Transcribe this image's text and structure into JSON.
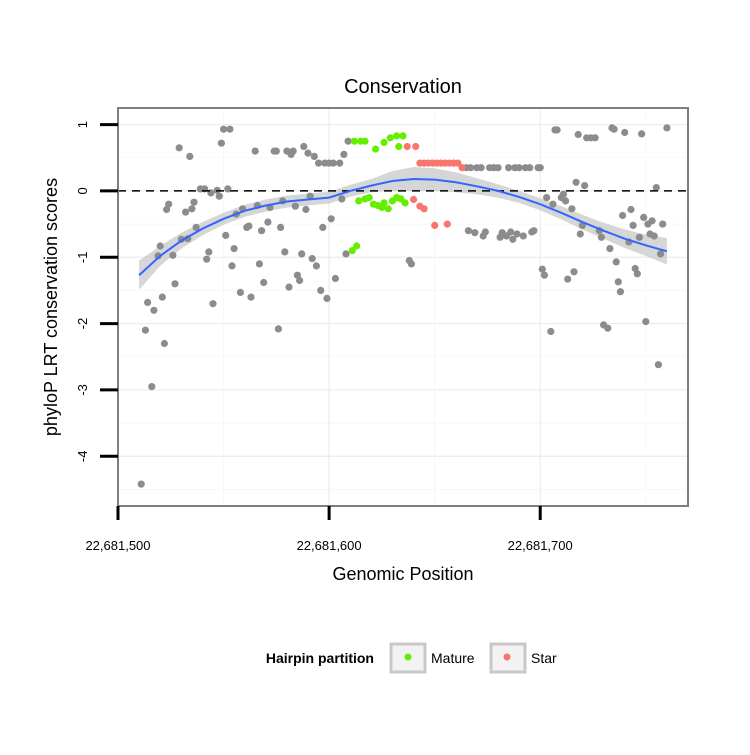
{
  "chart_data": {
    "type": "scatter",
    "title": "Conservation",
    "xlabel": "Genomic Position",
    "ylabel": "phyloP LRT conservation scores",
    "xlim": [
      22681500,
      22681770
    ],
    "ylim": [
      -4.75,
      1.25
    ],
    "x_ticks": [
      {
        "value": 22681500,
        "label": "22,681,500"
      },
      {
        "value": 22681600,
        "label": "22,681,600"
      },
      {
        "value": 22681700,
        "label": "22,681,700"
      }
    ],
    "y_ticks": [
      {
        "value": 1,
        "label": "1"
      },
      {
        "value": 0,
        "label": "0"
      },
      {
        "value": -1,
        "label": "-1"
      },
      {
        "value": -2,
        "label": "-2"
      },
      {
        "value": -3,
        "label": "-3"
      },
      {
        "value": -4,
        "label": "-4"
      }
    ],
    "grid": true,
    "reference_line": {
      "y": 0,
      "style": "dashed",
      "color": "#000000"
    },
    "legend": {
      "title": "Hairpin partition",
      "position": "bottom",
      "entries": [
        {
          "name": "Mature",
          "color": "#66ee00"
        },
        {
          "name": "Star",
          "color": "#f8766d"
        }
      ]
    },
    "colors": {
      "other": "#8c8c8c",
      "mature": "#66ee00",
      "star": "#f8766d",
      "smooth": "#3366ff",
      "band": "#cccccc"
    },
    "smooth": {
      "x": [
        22681510,
        22681520,
        22681530,
        22681540,
        22681550,
        22681560,
        22681570,
        22681580,
        22681590,
        22681600,
        22681610,
        22681620,
        22681630,
        22681640,
        22681650,
        22681660,
        22681670,
        22681680,
        22681690,
        22681700,
        22681710,
        22681720,
        22681730,
        22681740,
        22681750,
        22681760
      ],
      "y": [
        -1.27,
        -0.98,
        -0.75,
        -0.57,
        -0.42,
        -0.3,
        -0.22,
        -0.16,
        -0.13,
        -0.1,
        0.0,
        0.08,
        0.15,
        0.18,
        0.17,
        0.13,
        0.07,
        0.0,
        -0.09,
        -0.2,
        -0.33,
        -0.47,
        -0.6,
        -0.72,
        -0.82,
        -0.91
      ],
      "band": [
        0.22,
        0.15,
        0.12,
        0.1,
        0.09,
        0.09,
        0.09,
        0.09,
        0.09,
        0.09,
        0.09,
        0.1,
        0.15,
        0.18,
        0.17,
        0.15,
        0.12,
        0.1,
        0.09,
        0.09,
        0.1,
        0.11,
        0.12,
        0.14,
        0.16,
        0.2
      ]
    },
    "series": [
      {
        "name": "Mature",
        "color": "#66ee00",
        "points": [
          [
            22681612,
            0.75
          ],
          [
            22681615,
            0.75
          ],
          [
            22681617,
            0.75
          ],
          [
            22681622,
            0.63
          ],
          [
            22681626,
            0.73
          ],
          [
            22681629,
            0.8
          ],
          [
            22681632,
            0.83
          ],
          [
            22681635,
            0.83
          ],
          [
            22681633,
            0.67
          ],
          [
            22681613,
            -0.83
          ],
          [
            22681611,
            -0.9
          ],
          [
            22681614,
            -0.15
          ],
          [
            22681617,
            -0.12
          ],
          [
            22681619,
            -0.1
          ],
          [
            22681621,
            -0.2
          ],
          [
            22681623,
            -0.22
          ],
          [
            22681625,
            -0.25
          ],
          [
            22681626,
            -0.18
          ],
          [
            22681628,
            -0.27
          ],
          [
            22681630,
            -0.15
          ],
          [
            22681632,
            -0.1
          ],
          [
            22681634,
            -0.12
          ],
          [
            22681636,
            -0.18
          ]
        ]
      },
      {
        "name": "Star",
        "color": "#f8766d",
        "points": [
          [
            22681637,
            0.67
          ],
          [
            22681641,
            0.67
          ],
          [
            22681643,
            0.42
          ],
          [
            22681645,
            0.42
          ],
          [
            22681647,
            0.42
          ],
          [
            22681649,
            0.42
          ],
          [
            22681651,
            0.42
          ],
          [
            22681653,
            0.42
          ],
          [
            22681655,
            0.42
          ],
          [
            22681657,
            0.42
          ],
          [
            22681659,
            0.42
          ],
          [
            22681661,
            0.42
          ],
          [
            22681663,
            0.35
          ],
          [
            22681640,
            -0.13
          ],
          [
            22681643,
            -0.23
          ],
          [
            22681645,
            -0.27
          ],
          [
            22681650,
            -0.52
          ],
          [
            22681656,
            -0.5
          ]
        ]
      },
      {
        "points": [
          [
            22681511,
            -4.42
          ],
          [
            22681513,
            -2.1
          ],
          [
            22681514,
            -1.68
          ],
          [
            22681516,
            -2.95
          ],
          [
            22681517,
            -1.8
          ],
          [
            22681519,
            -0.98
          ],
          [
            22681520,
            -0.83
          ],
          [
            22681521,
            -1.6
          ],
          [
            22681522,
            -2.3
          ],
          [
            22681523,
            -0.28
          ],
          [
            22681524,
            -0.2
          ],
          [
            22681526,
            -0.97
          ],
          [
            22681527,
            -1.4
          ],
          [
            22681529,
            0.65
          ],
          [
            22681530,
            -0.73
          ],
          [
            22681532,
            -0.32
          ],
          [
            22681533,
            -0.72
          ],
          [
            22681534,
            0.52
          ],
          [
            22681535,
            -0.27
          ],
          [
            22681536,
            -0.17
          ],
          [
            22681537,
            -0.55
          ],
          [
            22681539,
            0.03
          ],
          [
            22681541,
            0.03
          ],
          [
            22681542,
            -1.03
          ],
          [
            22681543,
            -0.92
          ],
          [
            22681544,
            -0.03
          ],
          [
            22681545,
            -1.7
          ],
          [
            22681547,
            0.01
          ],
          [
            22681548,
            -0.08
          ],
          [
            22681549,
            0.72
          ],
          [
            22681550,
            0.93
          ],
          [
            22681551,
            -0.67
          ],
          [
            22681552,
            0.03
          ],
          [
            22681553,
            0.93
          ],
          [
            22681554,
            -1.13
          ],
          [
            22681555,
            -0.87
          ],
          [
            22681556,
            -0.35
          ],
          [
            22681558,
            -1.53
          ],
          [
            22681559,
            -0.27
          ],
          [
            22681561,
            -0.55
          ],
          [
            22681562,
            -0.53
          ],
          [
            22681563,
            -1.6
          ],
          [
            22681565,
            0.6
          ],
          [
            22681566,
            -0.22
          ],
          [
            22681567,
            -1.1
          ],
          [
            22681568,
            -0.6
          ],
          [
            22681569,
            -1.38
          ],
          [
            22681571,
            -0.47
          ],
          [
            22681572,
            -0.25
          ],
          [
            22681574,
            0.6
          ],
          [
            22681575,
            0.6
          ],
          [
            22681576,
            -2.08
          ],
          [
            22681577,
            -0.55
          ],
          [
            22681578,
            -0.15
          ],
          [
            22681579,
            -0.92
          ],
          [
            22681580,
            0.6
          ],
          [
            22681581,
            -1.45
          ],
          [
            22681582,
            0.55
          ],
          [
            22681583,
            0.6
          ],
          [
            22681584,
            -0.23
          ],
          [
            22681585,
            -1.27
          ],
          [
            22681586,
            -1.35
          ],
          [
            22681587,
            -0.95
          ],
          [
            22681588,
            0.67
          ],
          [
            22681589,
            -0.28
          ],
          [
            22681590,
            0.57
          ],
          [
            22681591,
            -0.08
          ],
          [
            22681592,
            -1.02
          ],
          [
            22681593,
            0.52
          ],
          [
            22681594,
            -1.13
          ],
          [
            22681595,
            0.42
          ],
          [
            22681596,
            -1.5
          ],
          [
            22681597,
            -0.55
          ],
          [
            22681598,
            0.42
          ],
          [
            22681599,
            -1.62
          ],
          [
            22681600,
            0.42
          ],
          [
            22681601,
            -0.42
          ],
          [
            22681602,
            0.42
          ],
          [
            22681603,
            -1.32
          ],
          [
            22681605,
            0.42
          ],
          [
            22681606,
            -0.12
          ],
          [
            22681607,
            0.55
          ],
          [
            22681608,
            -0.95
          ],
          [
            22681609,
            0.75
          ],
          [
            22681638,
            -1.05
          ],
          [
            22681639,
            -1.1
          ],
          [
            22681665,
            0.35
          ],
          [
            22681666,
            -0.6
          ],
          [
            22681667,
            0.35
          ],
          [
            22681669,
            -0.63
          ],
          [
            22681670,
            0.35
          ],
          [
            22681672,
            0.35
          ],
          [
            22681673,
            -0.68
          ],
          [
            22681674,
            -0.62
          ],
          [
            22681676,
            0.35
          ],
          [
            22681678,
            0.35
          ],
          [
            22681680,
            0.35
          ],
          [
            22681681,
            -0.7
          ],
          [
            22681682,
            -0.63
          ],
          [
            22681684,
            -0.68
          ],
          [
            22681685,
            0.35
          ],
          [
            22681686,
            -0.62
          ],
          [
            22681687,
            -0.73
          ],
          [
            22681688,
            0.35
          ],
          [
            22681689,
            -0.65
          ],
          [
            22681690,
            0.35
          ],
          [
            22681692,
            -0.68
          ],
          [
            22681693,
            0.35
          ],
          [
            22681695,
            0.35
          ],
          [
            22681696,
            -0.62
          ],
          [
            22681697,
            -0.6
          ],
          [
            22681699,
            0.35
          ],
          [
            22681700,
            0.35
          ],
          [
            22681701,
            -1.18
          ],
          [
            22681702,
            -1.27
          ],
          [
            22681703,
            -0.1
          ],
          [
            22681705,
            -2.12
          ],
          [
            22681706,
            -0.2
          ],
          [
            22681707,
            0.92
          ],
          [
            22681708,
            0.92
          ],
          [
            22681710,
            -0.1
          ],
          [
            22681711,
            -0.05
          ],
          [
            22681712,
            -0.15
          ],
          [
            22681713,
            -1.33
          ],
          [
            22681715,
            -0.27
          ],
          [
            22681716,
            -1.22
          ],
          [
            22681717,
            0.13
          ],
          [
            22681718,
            0.85
          ],
          [
            22681719,
            -0.65
          ],
          [
            22681720,
            -0.52
          ],
          [
            22681721,
            0.08
          ],
          [
            22681722,
            0.8
          ],
          [
            22681724,
            0.8
          ],
          [
            22681726,
            0.8
          ],
          [
            22681728,
            -0.6
          ],
          [
            22681729,
            -0.7
          ],
          [
            22681730,
            -2.02
          ],
          [
            22681732,
            -2.07
          ],
          [
            22681733,
            -0.87
          ],
          [
            22681734,
            0.95
          ],
          [
            22681735,
            0.93
          ],
          [
            22681736,
            -1.07
          ],
          [
            22681737,
            -1.37
          ],
          [
            22681738,
            -1.52
          ],
          [
            22681739,
            -0.37
          ],
          [
            22681740,
            0.88
          ],
          [
            22681742,
            -0.77
          ],
          [
            22681743,
            -0.28
          ],
          [
            22681744,
            -0.52
          ],
          [
            22681745,
            -1.17
          ],
          [
            22681746,
            -1.25
          ],
          [
            22681747,
            -0.7
          ],
          [
            22681748,
            0.86
          ],
          [
            22681749,
            -0.4
          ],
          [
            22681750,
            -1.97
          ],
          [
            22681751,
            -0.5
          ],
          [
            22681752,
            -0.65
          ],
          [
            22681753,
            -0.45
          ],
          [
            22681754,
            -0.68
          ],
          [
            22681755,
            0.05
          ],
          [
            22681756,
            -2.62
          ],
          [
            22681757,
            -0.95
          ],
          [
            22681758,
            -0.5
          ],
          [
            22681760,
            0.95
          ]
        ]
      }
    ]
  }
}
